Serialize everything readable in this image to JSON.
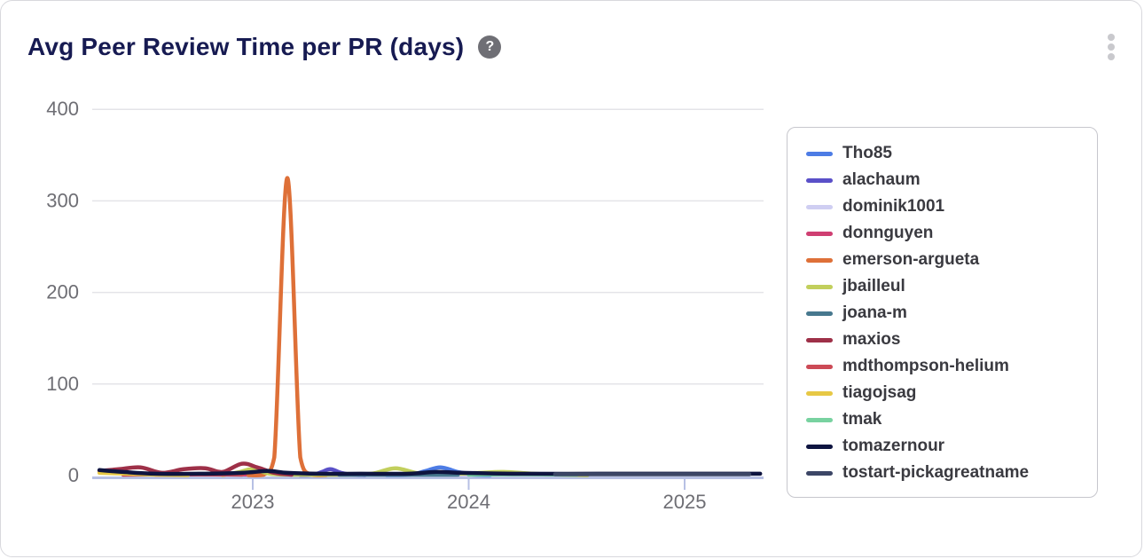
{
  "card": {
    "title": "Avg Peer Review Time per PR (days)",
    "help_icon": "?",
    "menu_icon": "kebab-vertical-dots"
  },
  "chart_data": {
    "type": "line",
    "title": "Avg Peer Review Time per PR (days)",
    "xlabel": "",
    "ylabel": "",
    "x_ticks": [
      2023,
      2024,
      2025
    ],
    "y_ticks": [
      0,
      100,
      200,
      300,
      400
    ],
    "xlim": [
      2022.25,
      2025.4
    ],
    "ylim": [
      0,
      400
    ],
    "grid": "horizontal",
    "legend_position": "right",
    "series": [
      {
        "name": "Tho85",
        "color": "#4d7ce5",
        "points": [
          [
            2023.62,
            0.5
          ],
          [
            2023.73,
            1
          ],
          [
            2023.8,
            5
          ],
          [
            2023.87,
            9
          ],
          [
            2023.95,
            4
          ],
          [
            2024.02,
            1
          ],
          [
            2024.1,
            0.5
          ]
        ]
      },
      {
        "name": "alachaum",
        "color": "#5a50c8",
        "points": [
          [
            2023.22,
            0.5
          ],
          [
            2023.28,
            1
          ],
          [
            2023.32,
            4
          ],
          [
            2023.36,
            7
          ],
          [
            2023.41,
            3
          ],
          [
            2023.46,
            1
          ],
          [
            2023.52,
            0.5
          ]
        ]
      },
      {
        "name": "dominik1001",
        "color": "#cfcef2",
        "points": [
          [
            2023.35,
            1
          ],
          [
            2023.7,
            1
          ],
          [
            2024.05,
            1.5
          ],
          [
            2024.35,
            1
          ]
        ]
      },
      {
        "name": "donnguyen",
        "color": "#cf3f72",
        "points": [
          [
            2022.55,
            1
          ],
          [
            2022.8,
            1.5
          ],
          [
            2023.05,
            1
          ]
        ]
      },
      {
        "name": "emerson-argueta",
        "color": "#de7038",
        "points": [
          [
            2022.98,
            0.5
          ],
          [
            2023.05,
            1
          ],
          [
            2023.1,
            20
          ],
          [
            2023.16,
            325
          ],
          [
            2023.22,
            20
          ],
          [
            2023.27,
            1
          ],
          [
            2023.34,
            0.5
          ]
        ]
      },
      {
        "name": "jbailleul",
        "color": "#c2cf5c",
        "points": [
          [
            2022.86,
            0.5
          ],
          [
            2022.94,
            4
          ],
          [
            2023.0,
            7
          ],
          [
            2023.08,
            2
          ],
          [
            2023.2,
            1
          ],
          [
            2023.4,
            1
          ],
          [
            2023.55,
            2
          ],
          [
            2023.66,
            8
          ],
          [
            2023.78,
            2
          ],
          [
            2023.95,
            2
          ],
          [
            2024.05,
            3
          ],
          [
            2024.16,
            4
          ],
          [
            2024.3,
            2
          ],
          [
            2024.45,
            1
          ],
          [
            2024.55,
            0.5
          ]
        ]
      },
      {
        "name": "joana-m",
        "color": "#47788e",
        "points": [
          [
            2023.4,
            1
          ],
          [
            2023.7,
            1
          ],
          [
            2023.95,
            1
          ]
        ]
      },
      {
        "name": "maxios",
        "color": "#9e3048",
        "points": [
          [
            2022.29,
            5
          ],
          [
            2022.38,
            7
          ],
          [
            2022.48,
            9
          ],
          [
            2022.58,
            3
          ],
          [
            2022.68,
            7
          ],
          [
            2022.78,
            8
          ],
          [
            2022.86,
            4
          ],
          [
            2022.95,
            13
          ],
          [
            2023.02,
            9
          ],
          [
            2023.1,
            3
          ],
          [
            2023.18,
            1
          ]
        ]
      },
      {
        "name": "mdthompson-helium",
        "color": "#cc4a56",
        "points": [
          [
            2022.4,
            1
          ],
          [
            2022.7,
            1.5
          ],
          [
            2022.95,
            1
          ]
        ]
      },
      {
        "name": "tiagojsag",
        "color": "#e7c845",
        "points": [
          [
            2022.29,
            3
          ],
          [
            2022.42,
            2
          ],
          [
            2022.55,
            1
          ],
          [
            2022.7,
            0.5
          ]
        ]
      },
      {
        "name": "tmak",
        "color": "#78d2a0",
        "points": [
          [
            2024.0,
            1
          ],
          [
            2024.25,
            1.5
          ],
          [
            2024.5,
            1
          ]
        ]
      },
      {
        "name": "tomazernour",
        "color": "#0e1440",
        "points": [
          [
            2022.29,
            6
          ],
          [
            2022.4,
            4
          ],
          [
            2022.55,
            2
          ],
          [
            2022.75,
            2
          ],
          [
            2022.95,
            3
          ],
          [
            2023.07,
            5
          ],
          [
            2023.16,
            3
          ],
          [
            2023.3,
            2
          ],
          [
            2023.5,
            2
          ],
          [
            2023.72,
            2
          ],
          [
            2023.85,
            4
          ],
          [
            2023.97,
            3
          ],
          [
            2024.2,
            2
          ],
          [
            2024.6,
            2
          ],
          [
            2025.0,
            2
          ],
          [
            2025.35,
            2
          ]
        ]
      },
      {
        "name": "tostart-pickagreatname",
        "color": "#3c4666",
        "points": [
          [
            2024.4,
            1.5
          ],
          [
            2024.9,
            1.5
          ],
          [
            2025.3,
            1.5
          ]
        ]
      }
    ]
  },
  "colors": {
    "title": "#171b52",
    "tick_label": "#6e6e74",
    "gridline": "#e4e4e8",
    "axis_line": "#b7c0e4",
    "card_border": "#d8d8dd",
    "legend_border": "#c7c7cd",
    "legend_text": "#3a3a40"
  }
}
